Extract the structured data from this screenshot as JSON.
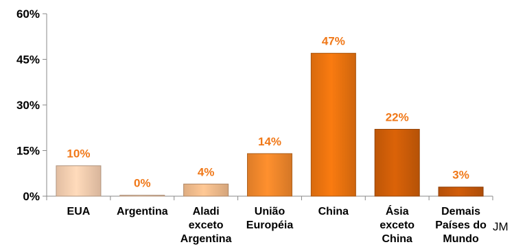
{
  "chart_data": {
    "type": "bar",
    "categories": [
      [
        "EUA"
      ],
      [
        "Argentina"
      ],
      [
        "Aladi",
        "exceto",
        "Argentina"
      ],
      [
        "União",
        "Européia"
      ],
      [
        "China"
      ],
      [
        "Ásia",
        "exceto",
        "China"
      ],
      [
        "Demais",
        "Países do",
        "Mundo"
      ]
    ],
    "values": [
      10,
      0,
      4,
      14,
      47,
      22,
      3
    ],
    "data_labels": [
      "10%",
      "0%",
      "4%",
      "14%",
      "47%",
      "22%",
      "3%"
    ],
    "ylim": [
      0,
      60
    ],
    "yticks": [
      0,
      15,
      30,
      45,
      60
    ],
    "ytick_labels": [
      "0%",
      "15%",
      "30%",
      "45%",
      "60%"
    ],
    "grid": false,
    "bar_colors": [
      "#fbd3b4",
      "#fbd3b4",
      "#f8c08f",
      "#f68a2c",
      "#f0760f",
      "#d35f08",
      "#c9590a"
    ],
    "label_color": "#f07818",
    "axis_color": "#888888"
  },
  "stray_text": "JM"
}
